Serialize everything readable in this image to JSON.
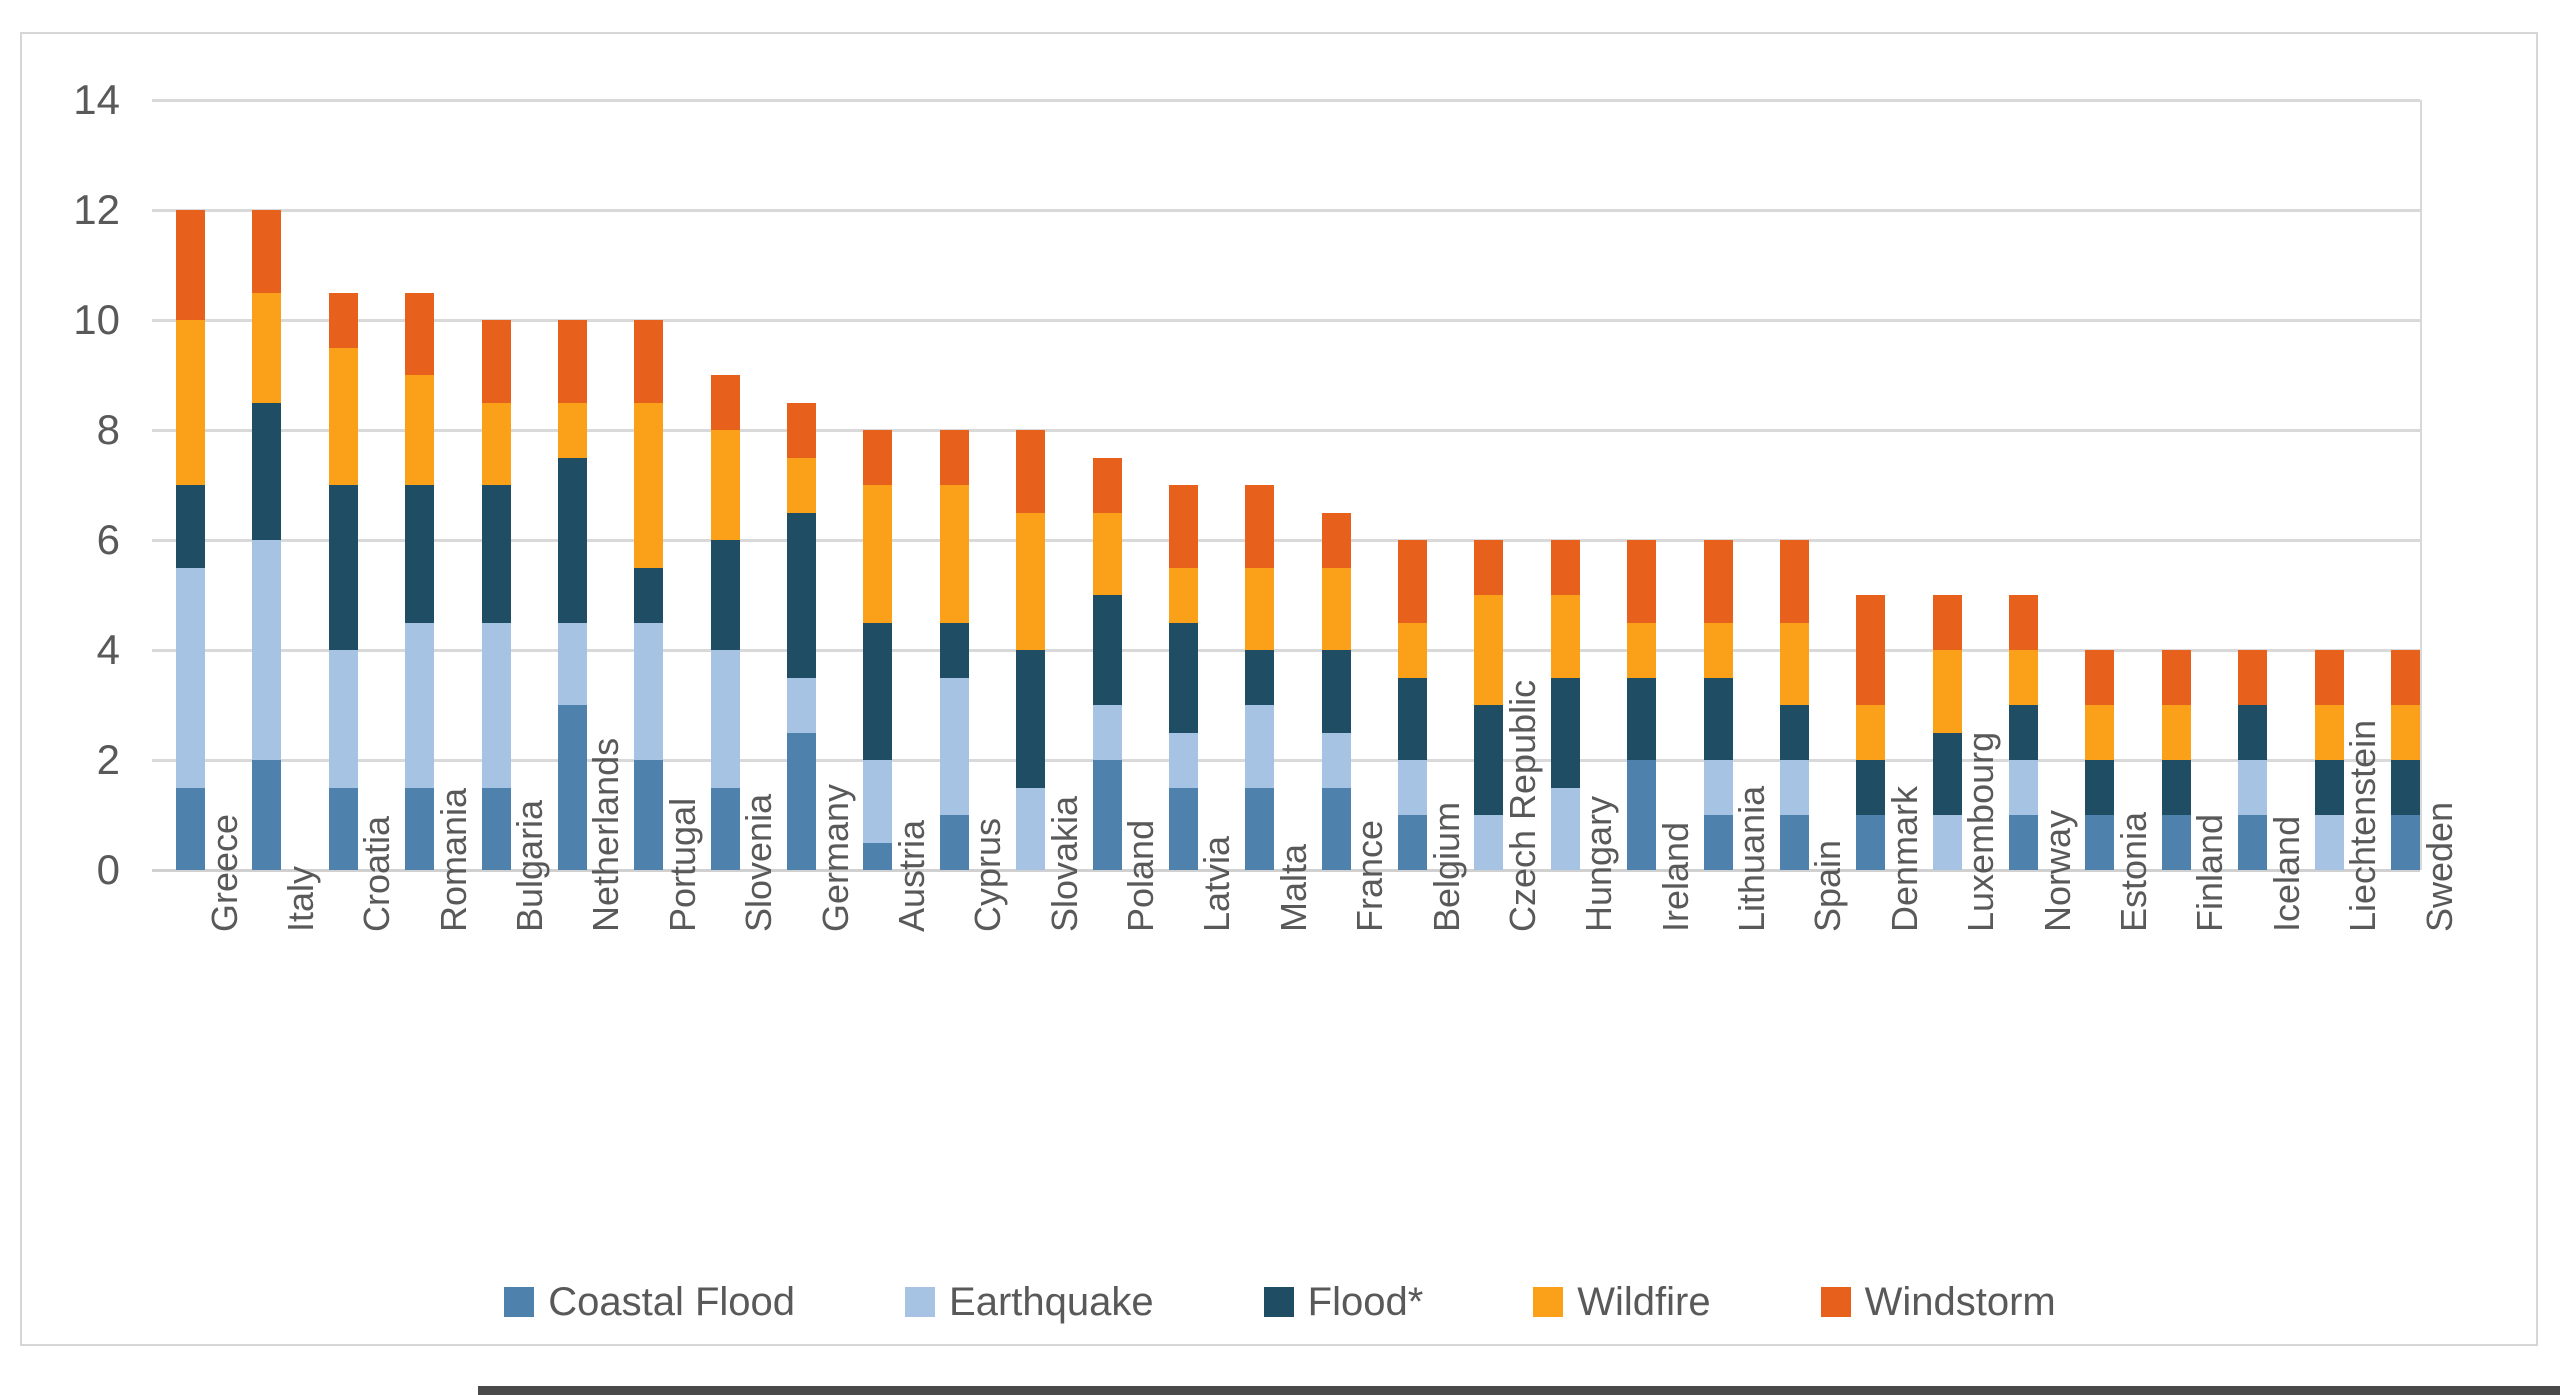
{
  "chart_data": {
    "type": "bar",
    "stacked": true,
    "title": "",
    "xlabel": "",
    "ylabel": "",
    "ylim": [
      0,
      14
    ],
    "ytick_step": 2,
    "yticks": [
      0,
      2,
      4,
      6,
      8,
      10,
      12,
      14
    ],
    "grid": true,
    "legend_position": "bottom",
    "categories": [
      "Greece",
      "Italy",
      "Croatia",
      "Romania",
      "Bulgaria",
      "Netherlands",
      "Portugal",
      "Slovenia",
      "Germany",
      "Austria",
      "Cyprus",
      "Slovakia",
      "Poland",
      "Latvia",
      "Malta",
      "France",
      "Belgium",
      "Czech Republic",
      "Hungary",
      "Ireland",
      "Lithuania",
      "Spain",
      "Denmark",
      "Luxembourg",
      "Norway",
      "Estonia",
      "Finland",
      "Iceland",
      "Liechtenstein",
      "Sweden"
    ],
    "series": [
      {
        "name": "Coastal Flood",
        "color": "#4E81AC",
        "values": [
          1.5,
          2,
          1.5,
          1.5,
          1.5,
          3,
          2,
          1.5,
          2.5,
          0.5,
          1,
          0,
          2,
          1.5,
          1.5,
          1.5,
          1,
          0,
          0,
          2,
          1,
          1,
          1,
          0,
          1,
          1,
          1,
          1,
          0,
          1
        ]
      },
      {
        "name": "Earthquake",
        "color": "#A6C3E3",
        "values": [
          4,
          4,
          2.5,
          3,
          3,
          1.5,
          2.5,
          2.5,
          1,
          1.5,
          2.5,
          1.5,
          1,
          1,
          1.5,
          1,
          1,
          1,
          1.5,
          0,
          1,
          1,
          0,
          1,
          1,
          0,
          0,
          1,
          1,
          0
        ]
      },
      {
        "name": "Flood*",
        "color": "#1F4D63",
        "values": [
          1.5,
          2.5,
          3,
          2.5,
          2.5,
          3,
          1,
          2,
          3,
          2.5,
          1,
          2.5,
          2,
          2,
          1,
          1.5,
          1.5,
          2,
          2,
          1.5,
          1.5,
          1,
          1,
          1.5,
          1,
          1,
          1,
          1,
          1,
          1
        ]
      },
      {
        "name": "Wildfire",
        "color": "#FBA119",
        "values": [
          3,
          2,
          2.5,
          2,
          1.5,
          1,
          3,
          2,
          1,
          2.5,
          2.5,
          2.5,
          1.5,
          1,
          1.5,
          1.5,
          1,
          2,
          1.5,
          1,
          1,
          1.5,
          1,
          1.5,
          1,
          1,
          1,
          0,
          1,
          1
        ]
      },
      {
        "name": "Windstorm",
        "color": "#E8611C",
        "values": [
          2,
          1.5,
          1,
          1.5,
          1.5,
          1.5,
          1.5,
          1,
          1,
          1,
          1,
          1.5,
          1,
          1.5,
          1.5,
          1,
          1.5,
          1,
          1,
          1.5,
          1.5,
          1.5,
          2,
          1,
          1,
          1,
          1,
          1,
          1,
          1
        ]
      }
    ],
    "totals": [
      12,
      12,
      10.5,
      10.5,
      10,
      10,
      10,
      9,
      8.5,
      8,
      8,
      8,
      7.5,
      7,
      7,
      6.5,
      6,
      6,
      6,
      6,
      6,
      6,
      5,
      5,
      5,
      4,
      4,
      4,
      4,
      4
    ]
  },
  "legend": {
    "items": [
      {
        "label": "Coastal Flood",
        "color": "#4E81AC"
      },
      {
        "label": "Earthquake",
        "color": "#A6C3E3"
      },
      {
        "label": "Flood*",
        "color": "#1F4D63"
      },
      {
        "label": "Wildfire",
        "color": "#FBA119"
      },
      {
        "label": "Windstorm",
        "color": "#E8611C"
      }
    ]
  },
  "style_colors": {
    "gridline": "#d9d9d9",
    "axis_text": "#595959",
    "frame_border": "#d6d6d6"
  }
}
